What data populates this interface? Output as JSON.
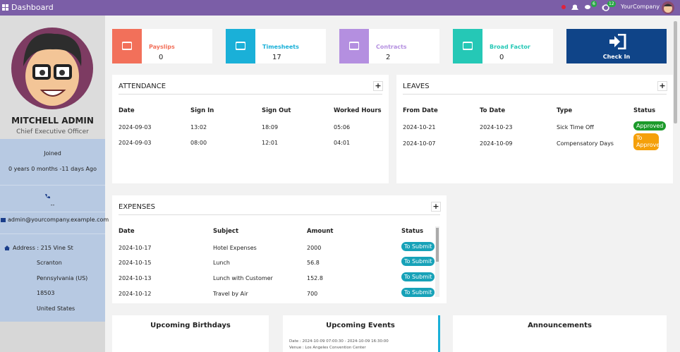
{
  "navbar": {
    "title": "Dashboard",
    "chat_badge": "6",
    "activity_badge": "12",
    "company": "YourCompany"
  },
  "profile": {
    "name": "MITCHELL ADMIN",
    "job": "Chief Executive Officer",
    "joined_label": "Joined",
    "joined": "0 years 0 months -11 days Ago",
    "phone": "--",
    "email": "admin@yourcompany.example.com",
    "address": "Address : 215 Vine St",
    "address_lines": [
      "Scranton",
      "Pennsylvania (US)",
      "18503",
      "United States"
    ]
  },
  "tiles": [
    {
      "label": "Payslips",
      "value": 0
    },
    {
      "label": "Timesheets",
      "value": 17
    },
    {
      "label": "Contracts",
      "value": 2
    },
    {
      "label": "Broad Factor",
      "value": 0
    }
  ],
  "check_in": "Check In",
  "attendance": {
    "title": "ATTENDANCE",
    "columns": [
      "Date",
      "Sign In",
      "Sign Out",
      "Worked Hours"
    ],
    "rows": [
      [
        "2024-09-03",
        "13:02",
        "18:09",
        "05:06"
      ],
      [
        "2024-09-03",
        "08:00",
        "12:01",
        "04:01"
      ]
    ]
  },
  "leaves": {
    "title": "LEAVES",
    "columns": [
      "From Date",
      "To Date",
      "Type",
      "Status"
    ],
    "rows": [
      [
        "2024-10-21",
        "2024-10-23",
        "Sick Time Off",
        "Approved"
      ],
      [
        "2024-10-07",
        "2024-10-09",
        "Compensatory Days",
        "To Approve"
      ]
    ]
  },
  "expenses": {
    "title": "EXPENSES",
    "columns": [
      "Date",
      "Subject",
      "Amount",
      "Status"
    ],
    "rows": [
      [
        "2024-10-17",
        "Hotel Expenses",
        2000,
        "To Submit"
      ],
      [
        "2024-10-15",
        "Lunch",
        56.8,
        "To Submit"
      ],
      [
        "2024-10-13",
        "Lunch with Customer",
        152.8,
        "To Submit"
      ],
      [
        "2024-10-12",
        "Travel by Air",
        700,
        "To Submit"
      ]
    ]
  },
  "bottom": {
    "birthdays": "Upcoming Birthdays",
    "events": "Upcoming Events",
    "event_date": "Date : 2024-10-09 07:00:30 - 2024-10-09 16:30:00",
    "event_venue": "Venue : Los Angeles Convention Center",
    "announcements": "Announcements"
  }
}
